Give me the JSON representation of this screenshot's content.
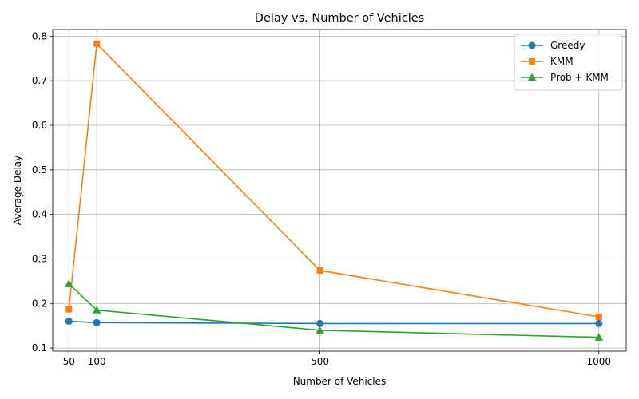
{
  "chart_data": {
    "type": "line",
    "title": "Delay vs. Number of Vehicles",
    "xlabel": "Number of Vehicles",
    "ylabel": "Average Delay",
    "x": [
      50,
      100,
      500,
      1000
    ],
    "x_ticks": [
      "50",
      "100",
      "500",
      "1000"
    ],
    "xlim": [
      21,
      1049
    ],
    "ylim": [
      0.093,
      0.815
    ],
    "y_ticks": [
      "0.1",
      "0.2",
      "0.3",
      "0.4",
      "0.5",
      "0.6",
      "0.7",
      "0.8"
    ],
    "grid": true,
    "legend_position": "upper right",
    "series": [
      {
        "name": "Greedy",
        "color": "#1f77b4",
        "marker": "circle",
        "values": [
          0.16,
          0.157,
          0.155,
          0.155
        ]
      },
      {
        "name": "KMM",
        "color": "#ff7f0e",
        "marker": "square",
        "values": [
          0.187,
          0.783,
          0.274,
          0.17
        ]
      },
      {
        "name": "Prob + KMM",
        "color": "#2ca02c",
        "marker": "triangle",
        "values": [
          0.244,
          0.185,
          0.14,
          0.124
        ]
      }
    ]
  }
}
